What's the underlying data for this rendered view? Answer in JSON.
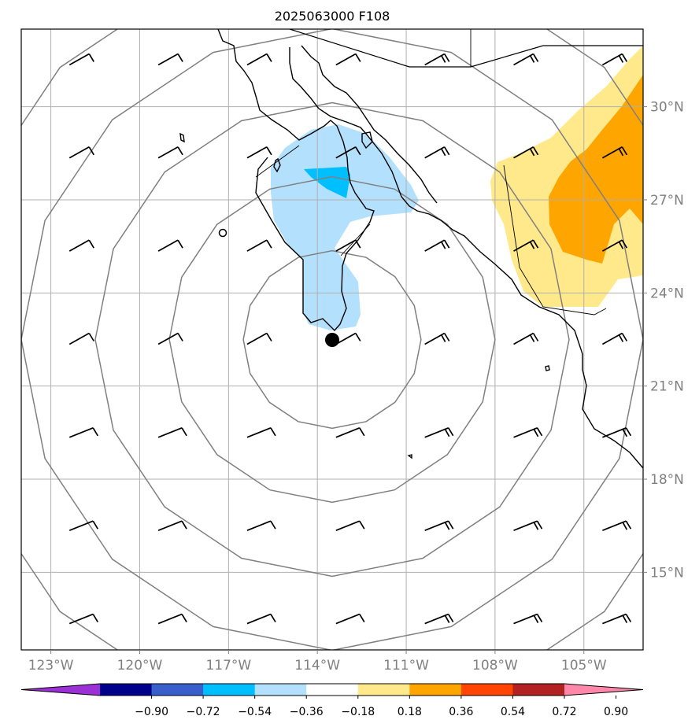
{
  "title": "2025063000 F108",
  "colors": {
    "grid": "#b0b0b0",
    "coast": "#000000",
    "rings": "#808080",
    "fill_blue_light": "#b3e0fd",
    "fill_blue_mid": "#00bfff",
    "fill_yellow": "#ffe98a",
    "fill_orange": "#ffa500",
    "storm_marker": "#000000"
  },
  "map": {
    "lon_range": [
      -124,
      -103
    ],
    "lat_range": [
      12.5,
      32.5
    ],
    "lon_ticks": [
      {
        "value": -123,
        "label": "123°W"
      },
      {
        "value": -120,
        "label": "120°W"
      },
      {
        "value": -117,
        "label": "117°W"
      },
      {
        "value": -114,
        "label": "114°W"
      },
      {
        "value": -111,
        "label": "111°W"
      },
      {
        "value": -108,
        "label": "108°W"
      },
      {
        "value": -105,
        "label": "105°W"
      }
    ],
    "lat_ticks": [
      {
        "value": 30,
        "label": "30°N"
      },
      {
        "value": 27,
        "label": "27°N"
      },
      {
        "value": 24,
        "label": "24°N"
      },
      {
        "value": 21,
        "label": "21°N"
      },
      {
        "value": 18,
        "label": "18°N"
      },
      {
        "value": 15,
        "label": "15°N"
      }
    ],
    "storm_center": {
      "lon": -113.5,
      "lat": 22.5
    },
    "range_rings_deg": [
      3.0,
      5.5,
      8.0,
      10.5,
      13.0
    ]
  },
  "colorbar": {
    "colors": [
      "#9b30d6",
      "#00008b",
      "#3a5fcd",
      "#00bfff",
      "#b3e0fd",
      "#ffffff",
      "#ffe98a",
      "#ffa500",
      "#ff4500",
      "#b22222",
      "#ff88aa"
    ],
    "tick_labels": [
      "−0.90",
      "−0.72",
      "−0.54",
      "−0.36",
      "−0.18",
      "0.18",
      "0.36",
      "0.54",
      "0.72",
      "0.90"
    ]
  }
}
